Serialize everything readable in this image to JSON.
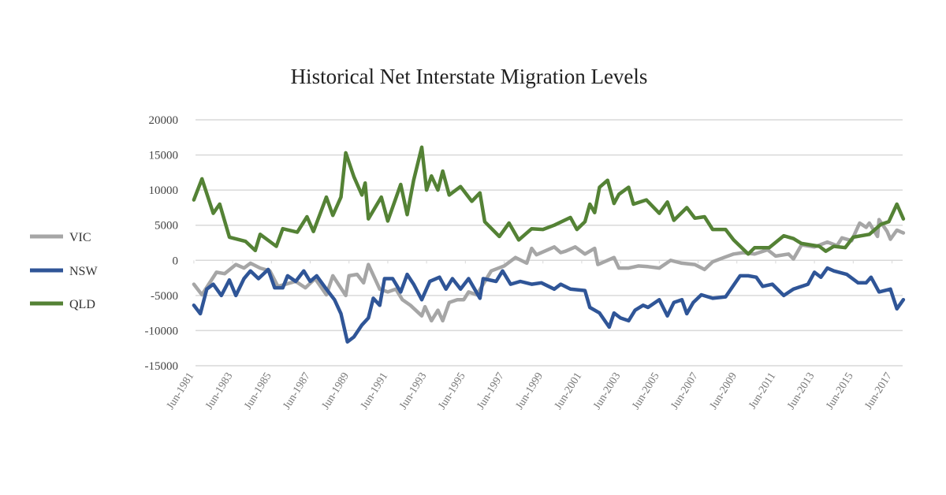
{
  "chart_data": {
    "type": "line",
    "title": "Historical Net Interstate Migration Levels",
    "xlabel": "",
    "ylabel": "",
    "ylim": [
      -15000,
      20000
    ],
    "yticks": [
      20000,
      15000,
      10000,
      5000,
      0,
      -5000,
      -10000,
      -15000
    ],
    "xticks": [
      "Jun-1981",
      "Jun-1983",
      "Jun-1985",
      "Jun-1987",
      "Jun-1989",
      "Jun-1991",
      "Jun-1993",
      "Jun-1995",
      "Jun-1997",
      "Jun-1999",
      "Jun-2001",
      "Jun-2003",
      "Jun-2005",
      "Jun-2007",
      "Jun-2009",
      "Jun-2011",
      "Jun-2013",
      "Jun-2015",
      "Jun-2017"
    ],
    "grid": true,
    "legend": "left",
    "series": [
      {
        "name": "VIC",
        "color": "#a6a6a6",
        "points": [
          [
            "1981-06",
            -3400
          ],
          [
            "1981-11",
            -4900
          ],
          [
            "1982-08",
            -1700
          ],
          [
            "1983-01",
            -1900
          ],
          [
            "1983-08",
            -600
          ],
          [
            "1984-01",
            -1100
          ],
          [
            "1984-05",
            -400
          ],
          [
            "1984-11",
            -1100
          ],
          [
            "1985-05",
            -1500
          ],
          [
            "1985-10",
            -3700
          ],
          [
            "1986-09",
            -3000
          ],
          [
            "1987-03",
            -3900
          ],
          [
            "1987-09",
            -2600
          ],
          [
            "1988-04",
            -4900
          ],
          [
            "1988-08",
            -2200
          ],
          [
            "1989-04",
            -5000
          ],
          [
            "1989-06",
            -2200
          ],
          [
            "1989-11",
            -2000
          ],
          [
            "1990-03",
            -3200
          ],
          [
            "1990-06",
            -600
          ],
          [
            "1991-01",
            -4100
          ],
          [
            "1991-06",
            -4500
          ],
          [
            "1991-11",
            -4100
          ],
          [
            "1992-03",
            -5600
          ],
          [
            "1992-08",
            -6400
          ],
          [
            "1993-03",
            -7900
          ],
          [
            "1993-05",
            -6600
          ],
          [
            "1993-09",
            -8600
          ],
          [
            "1994-01",
            -7100
          ],
          [
            "1994-04",
            -8600
          ],
          [
            "1994-08",
            -6000
          ],
          [
            "1995-01",
            -5600
          ],
          [
            "1995-05",
            -5600
          ],
          [
            "1995-08",
            -4500
          ],
          [
            "1996-01",
            -4900
          ],
          [
            "1996-05",
            -3400
          ],
          [
            "1996-10",
            -1500
          ],
          [
            "1997-06",
            -800
          ],
          [
            "1998-01",
            400
          ],
          [
            "1998-08",
            -400
          ],
          [
            "1998-11",
            1700
          ],
          [
            "1999-02",
            800
          ],
          [
            "2000-01",
            1900
          ],
          [
            "2000-05",
            1100
          ],
          [
            "2000-08",
            1300
          ],
          [
            "2001-02",
            1900
          ],
          [
            "2001-08",
            900
          ],
          [
            "2002-02",
            1700
          ],
          [
            "2002-04",
            -600
          ],
          [
            "2002-10",
            0
          ],
          [
            "2003-02",
            400
          ],
          [
            "2003-05",
            -1100
          ],
          [
            "2003-11",
            -1100
          ],
          [
            "2004-05",
            -800
          ],
          [
            "2004-11",
            -900
          ],
          [
            "2005-06",
            -1100
          ],
          [
            "2006-01",
            0
          ],
          [
            "2006-08",
            -400
          ],
          [
            "2007-04",
            -600
          ],
          [
            "2007-10",
            -1300
          ],
          [
            "2008-03",
            -200
          ],
          [
            "2008-10",
            400
          ],
          [
            "2009-04",
            900
          ],
          [
            "2009-10",
            1100
          ],
          [
            "2010-05",
            900
          ],
          [
            "2011-01",
            1500
          ],
          [
            "2011-06",
            600
          ],
          [
            "2012-02",
            900
          ],
          [
            "2012-05",
            200
          ],
          [
            "2012-10",
            2200
          ],
          [
            "2013-06",
            1900
          ],
          [
            "2014-02",
            2600
          ],
          [
            "2014-08",
            2100
          ],
          [
            "2014-11",
            3200
          ],
          [
            "2015-05",
            2800
          ],
          [
            "2015-10",
            5300
          ],
          [
            "2016-02",
            4700
          ],
          [
            "2016-04",
            5300
          ],
          [
            "2016-09",
            3400
          ],
          [
            "2016-10",
            5800
          ],
          [
            "2017-03",
            4100
          ],
          [
            "2017-05",
            3000
          ],
          [
            "2017-09",
            4300
          ],
          [
            "2018-01",
            3900
          ]
        ]
      },
      {
        "name": "NSW",
        "color": "#2f5597",
        "points": [
          [
            "1981-06",
            -6400
          ],
          [
            "1981-10",
            -7600
          ],
          [
            "1982-02",
            -4100
          ],
          [
            "1982-06",
            -3400
          ],
          [
            "1982-11",
            -5000
          ],
          [
            "1983-04",
            -2800
          ],
          [
            "1983-08",
            -5000
          ],
          [
            "1984-01",
            -2600
          ],
          [
            "1984-05",
            -1500
          ],
          [
            "1984-10",
            -2600
          ],
          [
            "1985-04",
            -1300
          ],
          [
            "1985-08",
            -3900
          ],
          [
            "1986-01",
            -3900
          ],
          [
            "1986-04",
            -2200
          ],
          [
            "1986-09",
            -3000
          ],
          [
            "1987-02",
            -1500
          ],
          [
            "1987-06",
            -3000
          ],
          [
            "1987-10",
            -2200
          ],
          [
            "1988-04",
            -4100
          ],
          [
            "1988-09",
            -5600
          ],
          [
            "1989-01",
            -7600
          ],
          [
            "1989-05",
            -11600
          ],
          [
            "1989-09",
            -10900
          ],
          [
            "1990-02",
            -9200
          ],
          [
            "1990-06",
            -8200
          ],
          [
            "1990-09",
            -5400
          ],
          [
            "1991-01",
            -6400
          ],
          [
            "1991-04",
            -2600
          ],
          [
            "1991-09",
            -2600
          ],
          [
            "1992-02",
            -4500
          ],
          [
            "1992-06",
            -2000
          ],
          [
            "1992-10",
            -3400
          ],
          [
            "1993-03",
            -5600
          ],
          [
            "1993-08",
            -3000
          ],
          [
            "1994-02",
            -2400
          ],
          [
            "1994-06",
            -4100
          ],
          [
            "1994-10",
            -2600
          ],
          [
            "1995-03",
            -4100
          ],
          [
            "1995-08",
            -2600
          ],
          [
            "1996-03",
            -5400
          ],
          [
            "1996-05",
            -2600
          ],
          [
            "1997-01",
            -3000
          ],
          [
            "1997-05",
            -1500
          ],
          [
            "1997-10",
            -3400
          ],
          [
            "1998-04",
            -3000
          ],
          [
            "1998-11",
            -3400
          ],
          [
            "1999-05",
            -3200
          ],
          [
            "2000-01",
            -4100
          ],
          [
            "2000-05",
            -3400
          ],
          [
            "2000-11",
            -4100
          ],
          [
            "2001-08",
            -4300
          ],
          [
            "2001-11",
            -6700
          ],
          [
            "2002-05",
            -7500
          ],
          [
            "2002-11",
            -9500
          ],
          [
            "2003-02",
            -7500
          ],
          [
            "2003-06",
            -8200
          ],
          [
            "2003-11",
            -8600
          ],
          [
            "2004-03",
            -7100
          ],
          [
            "2004-08",
            -6400
          ],
          [
            "2004-11",
            -6700
          ],
          [
            "2005-06",
            -5600
          ],
          [
            "2005-11",
            -7900
          ],
          [
            "2006-03",
            -6000
          ],
          [
            "2006-08",
            -5600
          ],
          [
            "2006-11",
            -7600
          ],
          [
            "2007-03",
            -6000
          ],
          [
            "2007-08",
            -4900
          ],
          [
            "2008-03",
            -5400
          ],
          [
            "2008-11",
            -5200
          ],
          [
            "2009-08",
            -2200
          ],
          [
            "2010-01",
            -2200
          ],
          [
            "2010-06",
            -2400
          ],
          [
            "2010-10",
            -3700
          ],
          [
            "2011-04",
            -3400
          ],
          [
            "2011-11",
            -5000
          ],
          [
            "2012-05",
            -4100
          ],
          [
            "2013-02",
            -3400
          ],
          [
            "2013-06",
            -1700
          ],
          [
            "2013-10",
            -2400
          ],
          [
            "2014-02",
            -1100
          ],
          [
            "2014-06",
            -1500
          ],
          [
            "2015-02",
            -2000
          ],
          [
            "2015-09",
            -3200
          ],
          [
            "2016-02",
            -3200
          ],
          [
            "2016-05",
            -2400
          ],
          [
            "2016-10",
            -4500
          ],
          [
            "2017-05",
            -4100
          ],
          [
            "2017-09",
            -6900
          ],
          [
            "2018-01",
            -5600
          ]
        ]
      },
      {
        "name": "QLD",
        "color": "#548235",
        "points": [
          [
            "1981-06",
            8600
          ],
          [
            "1981-11",
            11600
          ],
          [
            "1982-06",
            6700
          ],
          [
            "1982-10",
            8000
          ],
          [
            "1983-04",
            3300
          ],
          [
            "1984-02",
            2700
          ],
          [
            "1984-08",
            1400
          ],
          [
            "1984-11",
            3700
          ],
          [
            "1985-09",
            2000
          ],
          [
            "1986-01",
            4500
          ],
          [
            "1986-10",
            4000
          ],
          [
            "1987-04",
            6200
          ],
          [
            "1987-08",
            4100
          ],
          [
            "1988-04",
            9000
          ],
          [
            "1988-08",
            6400
          ],
          [
            "1989-01",
            9000
          ],
          [
            "1989-04",
            15300
          ],
          [
            "1989-09",
            11900
          ],
          [
            "1990-02",
            9300
          ],
          [
            "1990-04",
            11000
          ],
          [
            "1990-06",
            5900
          ],
          [
            "1991-02",
            9000
          ],
          [
            "1991-06",
            5600
          ],
          [
            "1992-02",
            10800
          ],
          [
            "1992-06",
            6500
          ],
          [
            "1992-10",
            11400
          ],
          [
            "1993-03",
            16100
          ],
          [
            "1993-06",
            10000
          ],
          [
            "1993-09",
            12000
          ],
          [
            "1994-01",
            10000
          ],
          [
            "1994-04",
            12700
          ],
          [
            "1994-08",
            9300
          ],
          [
            "1995-03",
            10500
          ],
          [
            "1995-10",
            8400
          ],
          [
            "1996-03",
            9600
          ],
          [
            "1996-06",
            5500
          ],
          [
            "1997-03",
            3400
          ],
          [
            "1997-09",
            5300
          ],
          [
            "1998-03",
            2900
          ],
          [
            "1998-11",
            4500
          ],
          [
            "1999-06",
            4400
          ],
          [
            "2000-01",
            5000
          ],
          [
            "2000-11",
            6100
          ],
          [
            "2001-03",
            4400
          ],
          [
            "2001-08",
            5500
          ],
          [
            "2001-11",
            8000
          ],
          [
            "2002-02",
            6800
          ],
          [
            "2002-05",
            10400
          ],
          [
            "2002-10",
            11400
          ],
          [
            "2003-02",
            8100
          ],
          [
            "2003-05",
            9400
          ],
          [
            "2003-11",
            10400
          ],
          [
            "2004-02",
            8000
          ],
          [
            "2004-10",
            8600
          ],
          [
            "2005-06",
            6700
          ],
          [
            "2005-11",
            8300
          ],
          [
            "2006-03",
            5700
          ],
          [
            "2006-11",
            7500
          ],
          [
            "2007-04",
            6000
          ],
          [
            "2007-10",
            6200
          ],
          [
            "2008-03",
            4400
          ],
          [
            "2008-11",
            4400
          ],
          [
            "2009-04",
            2900
          ],
          [
            "2010-01",
            900
          ],
          [
            "2010-05",
            1800
          ],
          [
            "2011-02",
            1800
          ],
          [
            "2011-11",
            3500
          ],
          [
            "2012-05",
            3100
          ],
          [
            "2012-10",
            2400
          ],
          [
            "2013-09",
            2000
          ],
          [
            "2014-01",
            1300
          ],
          [
            "2014-06",
            2000
          ],
          [
            "2015-01",
            1800
          ],
          [
            "2015-06",
            3300
          ],
          [
            "2016-04",
            3700
          ],
          [
            "2016-11",
            5100
          ],
          [
            "2017-04",
            5500
          ],
          [
            "2017-09",
            8000
          ],
          [
            "2018-01",
            5900
          ]
        ]
      }
    ]
  }
}
